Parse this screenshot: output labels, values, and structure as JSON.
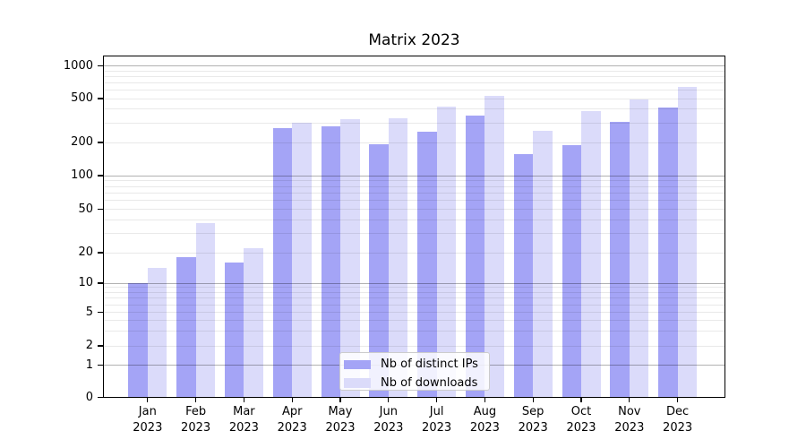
{
  "title": "Matrix 2023",
  "chart_data": {
    "type": "bar",
    "title": "Matrix 2023",
    "categories": [
      "Jan",
      "Feb",
      "Mar",
      "Apr",
      "May",
      "Jun",
      "Jul",
      "Aug",
      "Sep",
      "Oct",
      "Nov",
      "Dec"
    ],
    "year_label": "2023",
    "series": [
      {
        "name": "Nb of distinct IPs",
        "color": "#a4a4f6",
        "values": [
          10,
          18,
          16,
          270,
          280,
          192,
          252,
          350,
          158,
          190,
          305,
          412
        ]
      },
      {
        "name": "Nb of downloads",
        "color": "#dbdbfa",
        "values": [
          14,
          37,
          22,
          300,
          325,
          330,
          425,
          530,
          255,
          385,
          495,
          640
        ]
      }
    ],
    "yticks": [
      0,
      1,
      2,
      5,
      10,
      20,
      50,
      100,
      200,
      500,
      1000
    ],
    "ylim": [
      0,
      1000
    ],
    "yscale": "symlog",
    "grid": "on",
    "legend_position": "lower center"
  }
}
